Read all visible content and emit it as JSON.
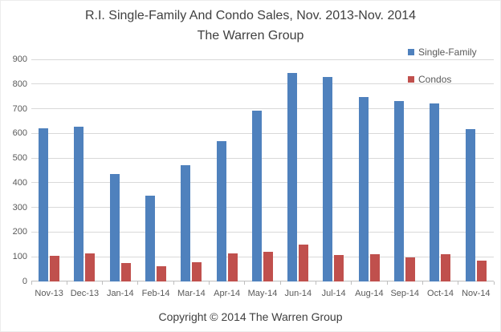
{
  "chart_data": {
    "type": "bar",
    "title": "R.I. Single-Family And Condo Sales, Nov. 2013-Nov. 2014",
    "subtitle": "The Warren Group",
    "categories": [
      "Nov-13",
      "Dec-13",
      "Jan-14",
      "Feb-14",
      "Mar-14",
      "Apr-14",
      "May-14",
      "Jun-14",
      "Jul-14",
      "Aug-14",
      "Sep-14",
      "Oct-14",
      "Nov-14"
    ],
    "series": [
      {
        "name": "Single-Family",
        "color": "#4f81bd",
        "values": [
          620,
          628,
          437,
          347,
          472,
          569,
          692,
          845,
          830,
          747,
          731,
          720,
          618
        ]
      },
      {
        "name": "Condos",
        "color": "#c0504d",
        "values": [
          103,
          115,
          75,
          61,
          79,
          115,
          119,
          150,
          108,
          112,
          99,
          111,
          86
        ]
      }
    ],
    "ylabel": "",
    "xlabel": "",
    "ylim": [
      0,
      900
    ],
    "ytick_step": 100,
    "grid": true,
    "legend_position": "top-right"
  },
  "footer": {
    "copyright": "Copyright © 2014 The Warren Group"
  },
  "colors": {
    "grid": "#d9d9d9",
    "axis_line": "#bfbfbf",
    "axis_text": "#595959",
    "title_text": "#404040"
  }
}
